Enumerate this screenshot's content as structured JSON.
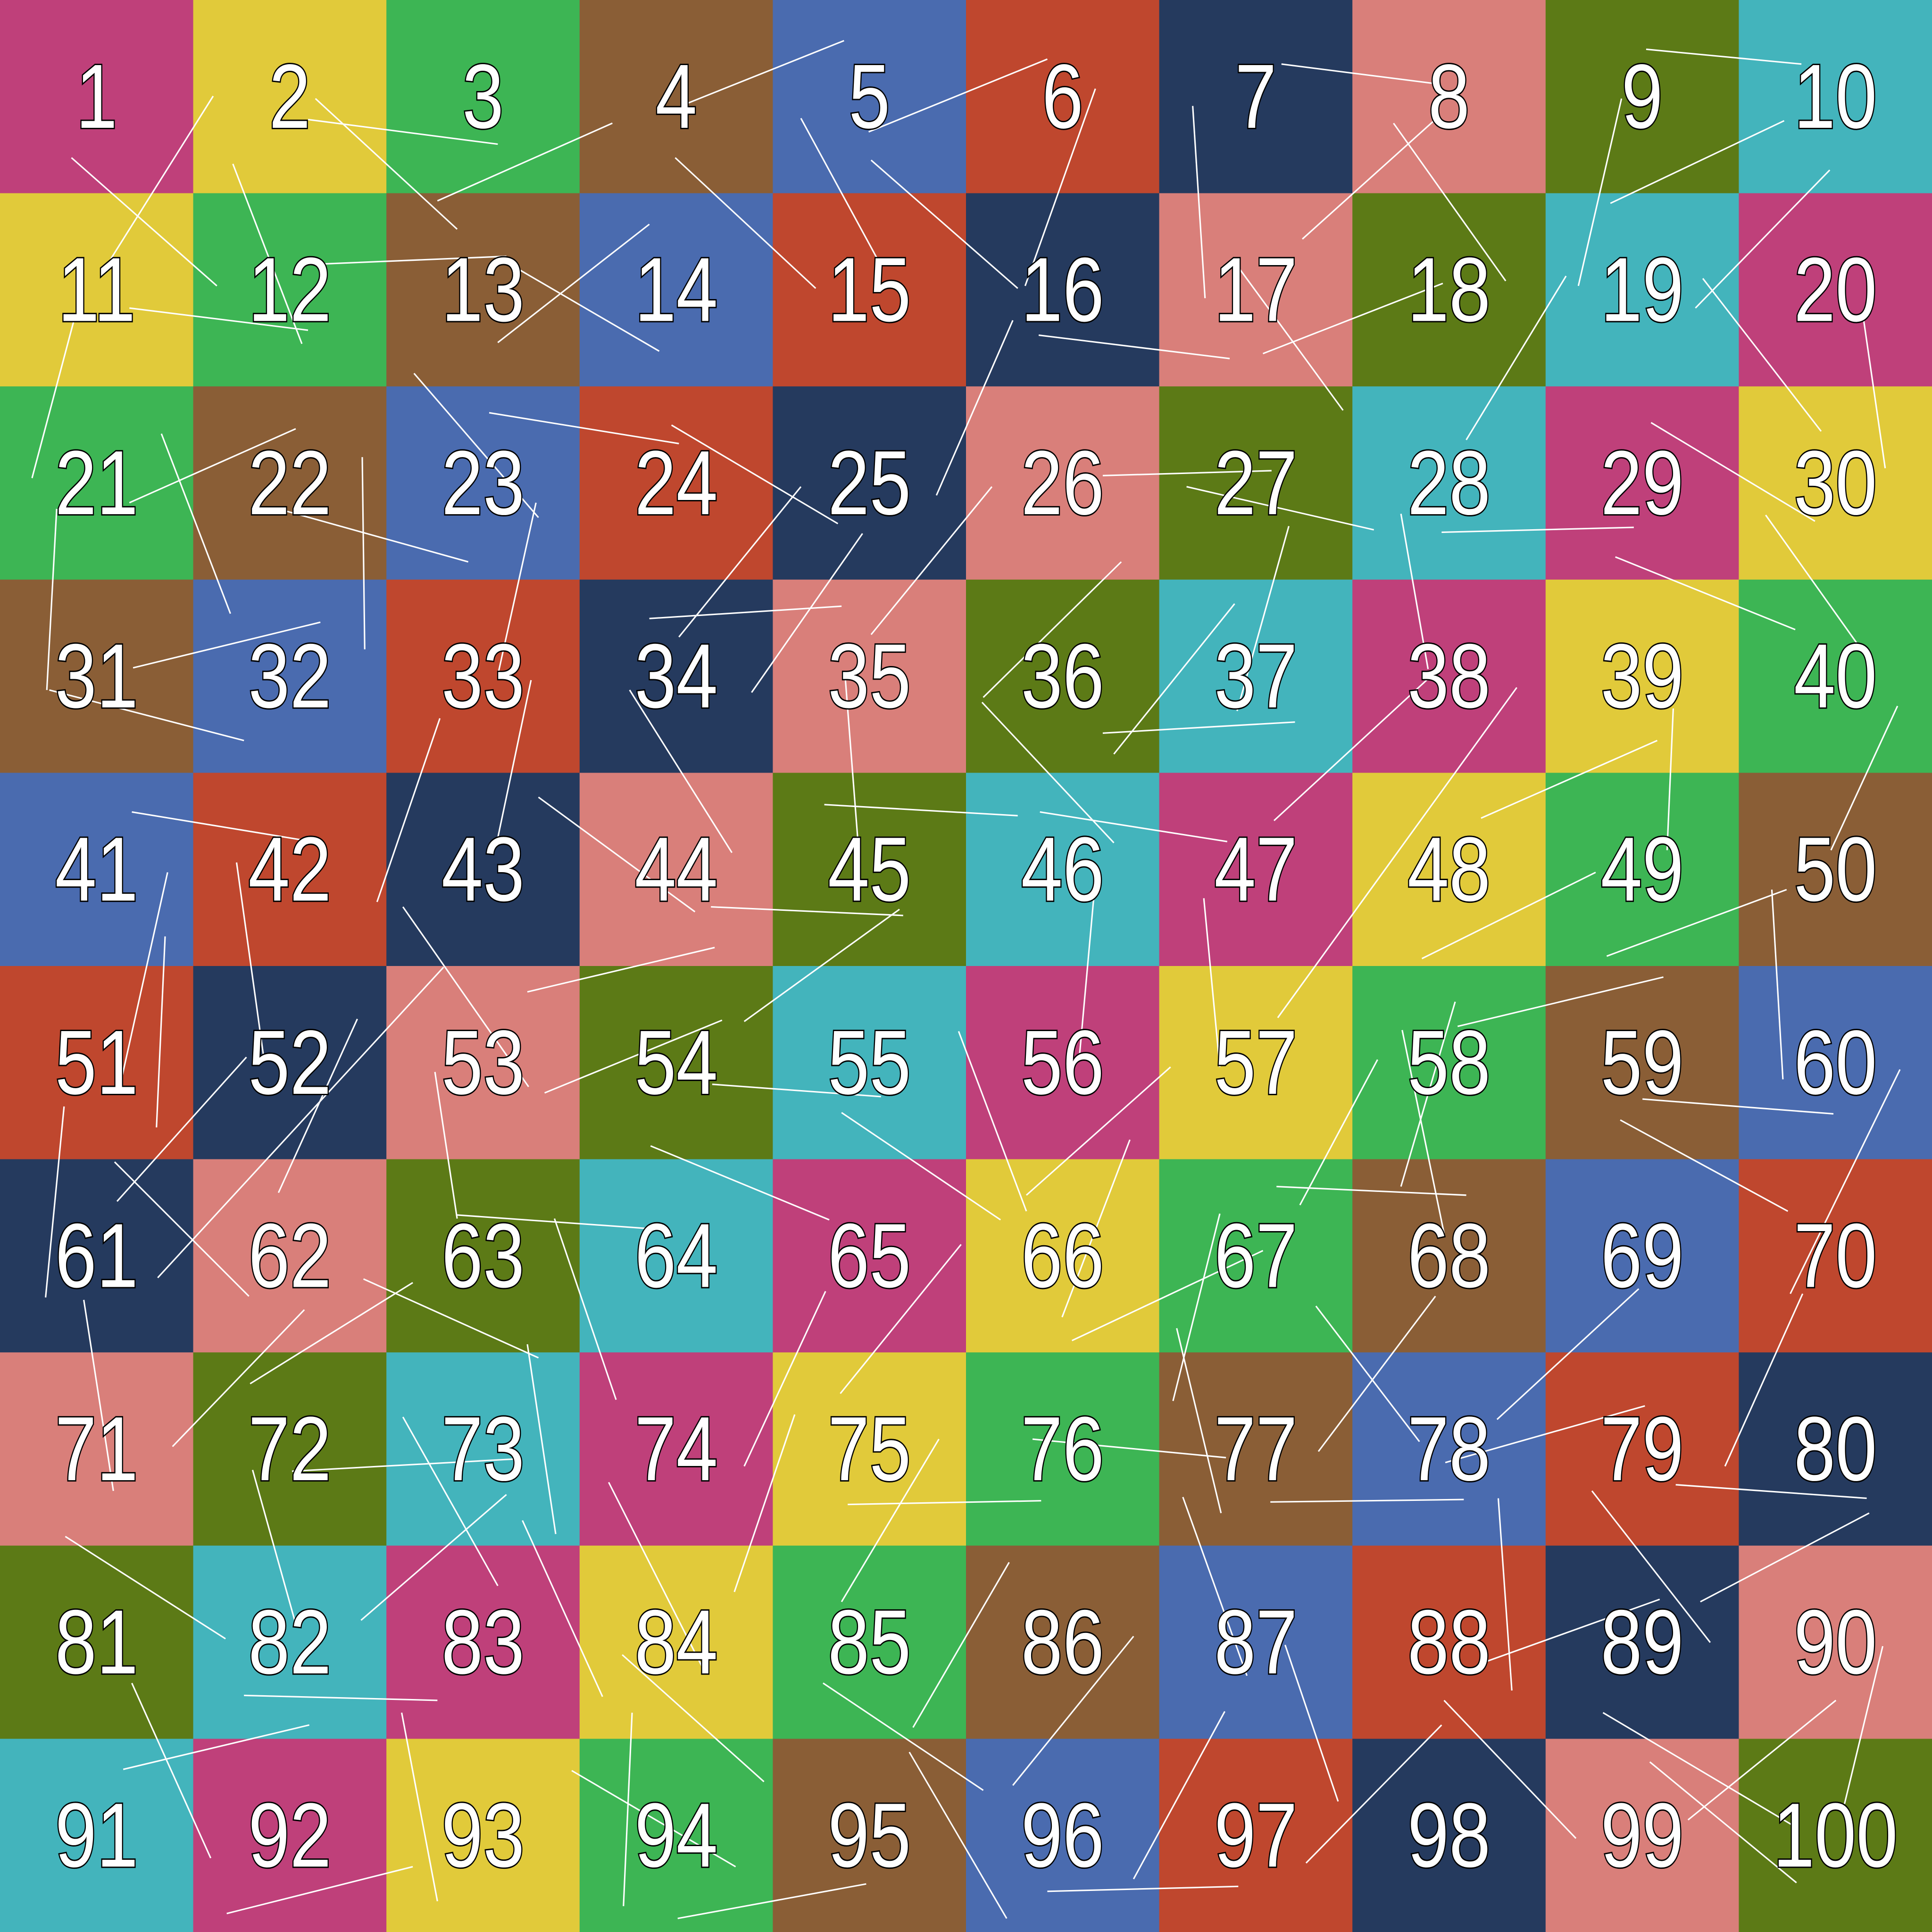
{
  "grid": {
    "rows": 10,
    "cols": 10,
    "palette": [
      "#BF407A",
      "#E1CA3A",
      "#3DB554",
      "#8A5E36",
      "#4A6BAF",
      "#BF472E",
      "#253A5E",
      "#D97F7A",
      "#5C7A16",
      "#43B4BC"
    ],
    "cells": [
      "1",
      "2",
      "3",
      "4",
      "5",
      "6",
      "7",
      "8",
      "9",
      "10",
      "11",
      "12",
      "13",
      "14",
      "15",
      "16",
      "17",
      "18",
      "19",
      "20",
      "21",
      "22",
      "23",
      "24",
      "25",
      "26",
      "27",
      "28",
      "29",
      "30",
      "31",
      "32",
      "33",
      "34",
      "35",
      "36",
      "37",
      "38",
      "39",
      "40",
      "41",
      "42",
      "43",
      "44",
      "45",
      "46",
      "47",
      "48",
      "49",
      "50",
      "51",
      "52",
      "53",
      "54",
      "55",
      "56",
      "57",
      "58",
      "59",
      "60",
      "61",
      "62",
      "63",
      "64",
      "65",
      "66",
      "67",
      "68",
      "69",
      "70",
      "71",
      "72",
      "73",
      "74",
      "75",
      "76",
      "77",
      "78",
      "79",
      "80",
      "81",
      "82",
      "83",
      "84",
      "85",
      "86",
      "87",
      "88",
      "89",
      "90",
      "91",
      "92",
      "93",
      "94",
      "95",
      "96",
      "97",
      "98",
      "99",
      "100"
    ],
    "line_color": "#FFFFFF"
  }
}
